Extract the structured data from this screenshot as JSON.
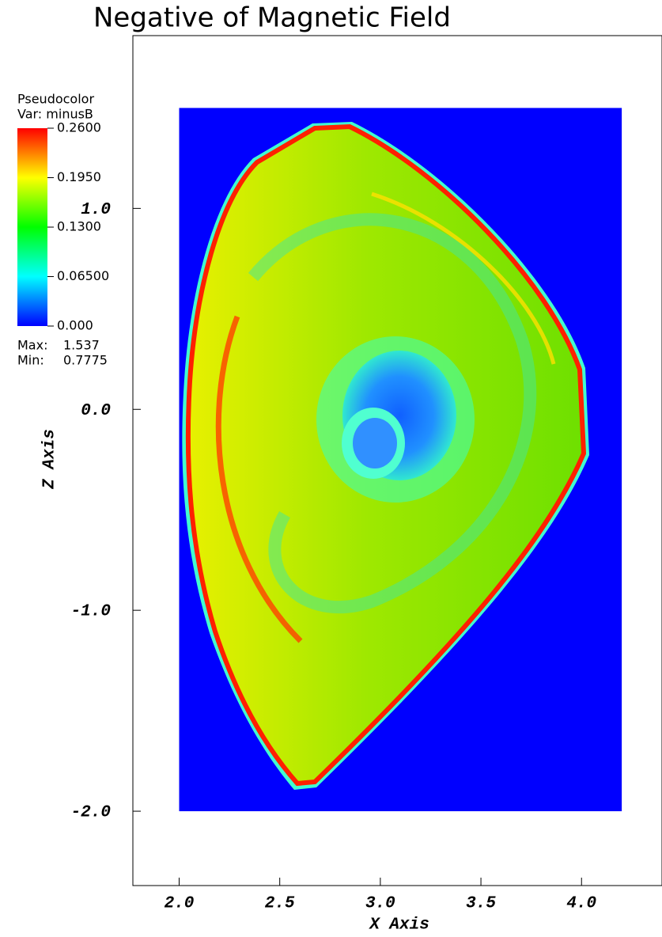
{
  "chart_data": {
    "type": "pseudocolor",
    "title": "Negative of Magnetic Field",
    "xlabel": "X Axis",
    "ylabel": "Z Axis",
    "xlim": [
      1.77,
      4.4
    ],
    "ylim": [
      -2.37,
      1.86
    ],
    "xticks": [
      {
        "value": 2,
        "label": "2.0"
      },
      {
        "value": 2.5,
        "label": "2.5"
      },
      {
        "value": 3,
        "label": "3.0"
      },
      {
        "value": 3.5,
        "label": "3.5"
      },
      {
        "value": 4,
        "label": "4.0"
      }
    ],
    "yticks": [
      {
        "value": 1,
        "label": "1.0"
      },
      {
        "value": 0,
        "label": "0.0"
      },
      {
        "value": -1,
        "label": "-1.0"
      },
      {
        "value": -2,
        "label": "-2.0"
      }
    ],
    "mesh_xlim": [
      2.0,
      4.2
    ],
    "mesh_ylim": [
      -2.0,
      1.5
    ],
    "background_color": "#0000ff",
    "legend": {
      "title": "Pseudocolor",
      "variable": "Var: minusB",
      "lim": [
        0,
        0.26
      ],
      "ticks": [
        {
          "value": 0.26,
          "label": "0.2600"
        },
        {
          "value": 0.195,
          "label": "0.1950"
        },
        {
          "value": 0.13,
          "label": "0.1300"
        },
        {
          "value": 0.065,
          "label": "0.06500"
        },
        {
          "value": 0,
          "label": "0.000"
        }
      ],
      "colormap": [
        "#ff0000",
        "#ffff00",
        "#00ff00",
        "#00ffff",
        "#0000ff"
      ],
      "max_label": "Max:",
      "max": 1.537,
      "min_label": "Min:",
      "min": 0.7775
    }
  }
}
